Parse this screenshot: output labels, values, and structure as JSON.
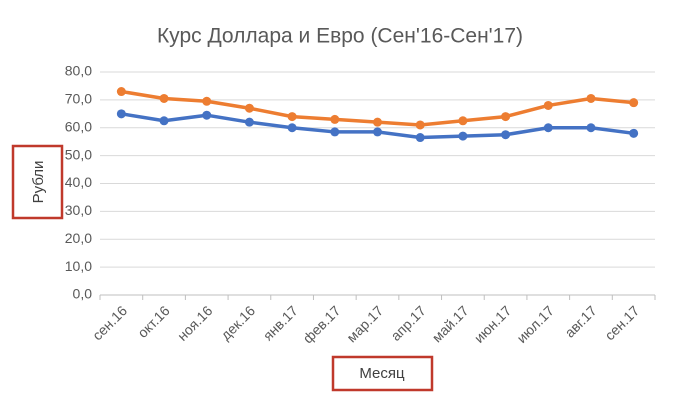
{
  "chart_data": {
    "type": "line",
    "title": "Курс Доллара и Евро (Сен'16-Сен'17)",
    "x_label": "Месяц",
    "y_label": "Рубли",
    "categories": [
      "сен.16",
      "окт.16",
      "ноя.16",
      "дек.16",
      "янв.17",
      "фев.17",
      "мар.17",
      "апр.17",
      "май.17",
      "июн.17",
      "июл.17",
      "авг.17",
      "сен.17"
    ],
    "series": [
      {
        "color": "#4472c4",
        "values": [
          65,
          62.5,
          64.5,
          62,
          60,
          58.5,
          58.5,
          56.5,
          57,
          57.5,
          60,
          60,
          58
        ]
      },
      {
        "color": "#ed7d31",
        "values": [
          73,
          70.5,
          69.5,
          67,
          64,
          63,
          62,
          61,
          62.5,
          64,
          68,
          70.5,
          69
        ]
      }
    ],
    "ylim": [
      0,
      80
    ],
    "yticks": [
      {
        "value": 0,
        "label": "0,0"
      },
      {
        "value": 10,
        "label": "10,0"
      },
      {
        "value": 20,
        "label": "20,0"
      },
      {
        "value": 30,
        "label": "30,0"
      },
      {
        "value": 40,
        "label": "40,0"
      },
      {
        "value": 50,
        "label": "50,0"
      },
      {
        "value": 60,
        "label": "60,0"
      },
      {
        "value": 70,
        "label": "70,0"
      },
      {
        "value": 80,
        "label": "80,0"
      }
    ],
    "grid": true
  }
}
